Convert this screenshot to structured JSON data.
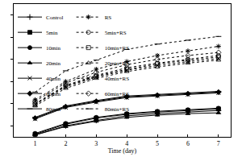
{
  "chart_data": {
    "type": "line",
    "x_label": "Time (day)",
    "x": [
      1,
      2,
      3,
      4,
      5,
      6,
      7
    ],
    "xlim": [
      0.3,
      7.4
    ],
    "xticks": [
      1,
      2,
      3,
      4,
      5,
      6,
      7
    ],
    "ylim": [
      100,
      1300
    ],
    "yticks": [
      200,
      400,
      600,
      800,
      1000,
      1200
    ],
    "tick_labels": "x",
    "grid": false,
    "legend": "top left",
    "series": [
      {
        "name": "Control",
        "color": "#000000",
        "marker": "plus",
        "line_style": "solid",
        "values": [
          117,
          200,
          248,
          290,
          310,
          324,
          338
        ]
      },
      {
        "name": "5min",
        "color": "#000000",
        "marker": "square",
        "line_style": "solid",
        "values": [
          124,
          214,
          269,
          304,
          324,
          338,
          352
        ]
      },
      {
        "name": "10min",
        "color": "#000000",
        "marker": "circle",
        "line_style": "solid",
        "values": [
          131,
          221,
          276,
          310,
          331,
          345,
          359
        ]
      },
      {
        "name": "20min",
        "color": "#000000",
        "marker": "triangle",
        "line_style": "solid",
        "values": [
          117,
          193,
          241,
          276,
          297,
          310,
          317
        ]
      },
      {
        "name": "40min",
        "color": "#000000",
        "marker": "x",
        "line_style": "solid",
        "values": [
          262,
          366,
          414,
          455,
          469,
          483,
          497
        ]
      },
      {
        "name": "60min",
        "color": "#000000",
        "marker": "diamond",
        "line_style": "solid",
        "values": [
          269,
          373,
          421,
          462,
          476,
          490,
          504
        ]
      },
      {
        "name": "80min",
        "color": "#000000",
        "marker": "dash",
        "line_style": "solid",
        "values": [
          276,
          379,
          428,
          469,
          483,
          497,
          511
        ]
      },
      {
        "name": "RS",
        "color": "#000000",
        "marker": "asterisk",
        "line_style": "dot",
        "values": [
          435,
          600,
          711,
          780,
          835,
          876,
          918
        ]
      },
      {
        "name": "5min+RS",
        "color": "#000000",
        "marker": "circle-open",
        "line_style": "dot",
        "values": [
          400,
          566,
          655,
          724,
          766,
          800,
          835
        ]
      },
      {
        "name": "10min+RS",
        "color": "#000000",
        "marker": "square-open",
        "line_style": "dot",
        "values": [
          393,
          559,
          648,
          710,
          759,
          793,
          821
        ]
      },
      {
        "name": "20min+RS",
        "color": "#000000",
        "marker": "triangle-open",
        "line_style": "dot",
        "values": [
          379,
          538,
          628,
          690,
          731,
          766,
          793
        ]
      },
      {
        "name": "40min+RS",
        "color": "#000000",
        "marker": "x",
        "line_style": "dot",
        "values": [
          393,
          552,
          641,
          703,
          745,
          780,
          807
        ]
      },
      {
        "name": "60min+RS",
        "color": "#000000",
        "marker": "diamond-open",
        "line_style": "dot",
        "values": [
          421,
          586,
          683,
          752,
          800,
          835,
          862
        ]
      },
      {
        "name": "80min+RS",
        "color": "#000000",
        "marker": "dash",
        "line_style": "dot",
        "values": [
          504,
          697,
          793,
          890,
          938,
          973,
          1007
        ]
      }
    ]
  }
}
